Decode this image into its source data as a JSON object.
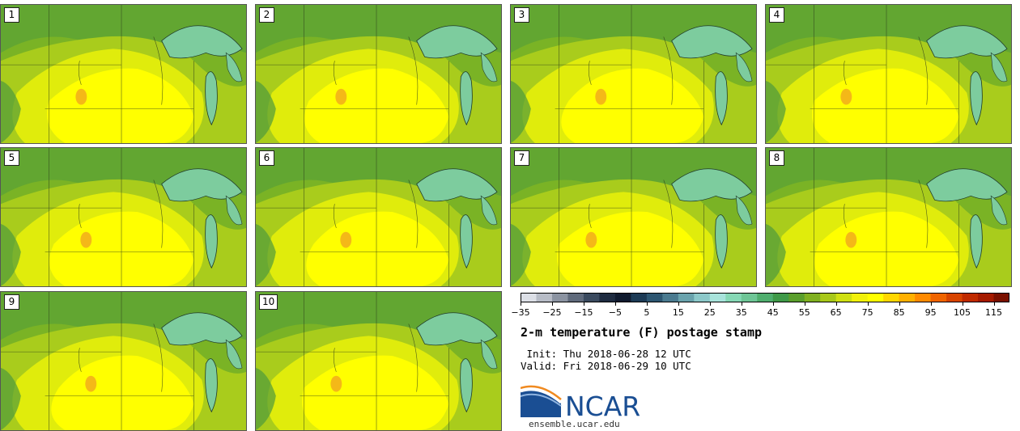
{
  "members": [
    "1",
    "2",
    "3",
    "4",
    "5",
    "6",
    "7",
    "8",
    "9",
    "10"
  ],
  "colorbar": {
    "ticks": [
      "−35",
      "−25",
      "−15",
      "−5",
      "5",
      "15",
      "25",
      "35",
      "45",
      "55",
      "65",
      "75",
      "85",
      "95",
      "105",
      "115"
    ],
    "colors": [
      "#dcdfe6",
      "#b7bcc6",
      "#8b93a1",
      "#5f6a7b",
      "#3a4a5e",
      "#1e2b40",
      "#0f1a2e",
      "#1c3a55",
      "#2d5671",
      "#4a7a8f",
      "#6aa3ad",
      "#8cc8c9",
      "#a8e3db",
      "#86d8b5",
      "#6ec596",
      "#4fae6e",
      "#3f9948",
      "#5a9e2c",
      "#80b020",
      "#a8c81a",
      "#cfe012",
      "#f1f10a",
      "#ffff00",
      "#ffd700",
      "#ffb000",
      "#ff8a00",
      "#f06400",
      "#d84400",
      "#c02a00",
      "#a51a00",
      "#7a1000"
    ],
    "min": -35,
    "step": 5
  },
  "title": "2-m temperature (F) postage stamp",
  "init": " Init: Thu 2018-06-28 12 UTC",
  "valid": "Valid: Fri 2018-06-29 10 UTC",
  "logo_text": "NCAR",
  "site": "ensemble.ucar.edu",
  "colors": {
    "hot_yellow": "#ffff00",
    "warm_yellow": "#e0ec0c",
    "green_light": "#a9cc1c",
    "green_mid": "#7ab325",
    "green_dark": "#4e9a3c",
    "lake": "#7dcc9e",
    "orange": "#f0a020",
    "ncar_blue": "#1a4e93"
  }
}
